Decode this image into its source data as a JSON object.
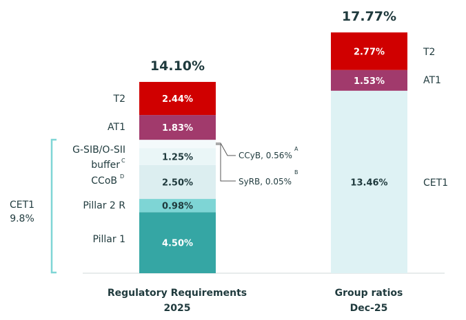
{
  "chart_data": {
    "type": "stacked-bar",
    "ylim": [
      0,
      20
    ],
    "bars": [
      {
        "name": "Regulatory Requirements 2025",
        "category_lines": [
          "Regulatory Requirements",
          "2025"
        ],
        "total_label": "14.10%",
        "segments": [
          {
            "name": "Pillar 1",
            "value": 4.5,
            "label": "4.50%",
            "color": "#35a6a4",
            "text_color": "#ffffff"
          },
          {
            "name": "Pillar 2 R",
            "value": 0.98,
            "label": "0.98%",
            "color": "#7ed5d5",
            "text_color": "#1f3a3d"
          },
          {
            "name": "CCoB",
            "value": 2.5,
            "label": "2.50%",
            "color": "#dceef0",
            "text_color": "#1f3a3d"
          },
          {
            "name": "G-SIB/O-SII buffer",
            "value": 1.25,
            "label": "1.25%",
            "color": "#eaf6f7",
            "text_color": "#1f3a3d"
          },
          {
            "name": "CCyB",
            "value": 0.56,
            "label": "",
            "color": "#f4fafb",
            "text_color": "#1f3a3d"
          },
          {
            "name": "SyRB",
            "value": 0.05,
            "label": "",
            "color": "#f4fafb",
            "text_color": "#1f3a3d"
          },
          {
            "name": "AT1",
            "value": 1.83,
            "label": "1.83%",
            "color": "#a13a6c",
            "text_color": "#ffffff"
          },
          {
            "name": "T2",
            "value": 2.44,
            "label": "2.44%",
            "color": "#d00000",
            "text_color": "#ffffff"
          }
        ]
      },
      {
        "name": "Group ratios Dec-25",
        "category_lines": [
          "Group ratios",
          "Dec-25"
        ],
        "total_label": "17.77%",
        "segments": [
          {
            "name": "CET1",
            "value": 13.46,
            "label": "13.46%",
            "color": "#def2f4",
            "text_color": "#1f3a3d"
          },
          {
            "name": "AT1",
            "value": 1.53,
            "label": "1.53%",
            "color": "#a13a6c",
            "text_color": "#ffffff"
          },
          {
            "name": "T2",
            "value": 2.77,
            "label": "2.77%",
            "color": "#d00000",
            "text_color": "#ffffff"
          }
        ]
      }
    ],
    "left_labels": {
      "t2": "T2",
      "at1": "AT1",
      "gsib": "G-SIB/O-SII",
      "buffer": "buffer",
      "buffer_sup": "C",
      "ccob": "CCoB",
      "ccob_sup": "D",
      "pillar2r": "Pillar 2 R",
      "pillar1": "Pillar 1"
    },
    "right_labels": {
      "t2": "T2",
      "at1": "AT1",
      "cet1": "CET1"
    },
    "annotations": {
      "ccyb": "CCyB, 0.56%",
      "ccyb_sup": "A",
      "syrb": "SyRB, 0.05%",
      "syrb_sup": "B"
    },
    "cet1_bracket": {
      "line1": "CET1",
      "line2": "9.8%"
    }
  },
  "colors": {
    "text": "#1f3a3d",
    "axis": "#cfd8da",
    "bracket": "#7ed5d5",
    "leader": "#555555"
  }
}
